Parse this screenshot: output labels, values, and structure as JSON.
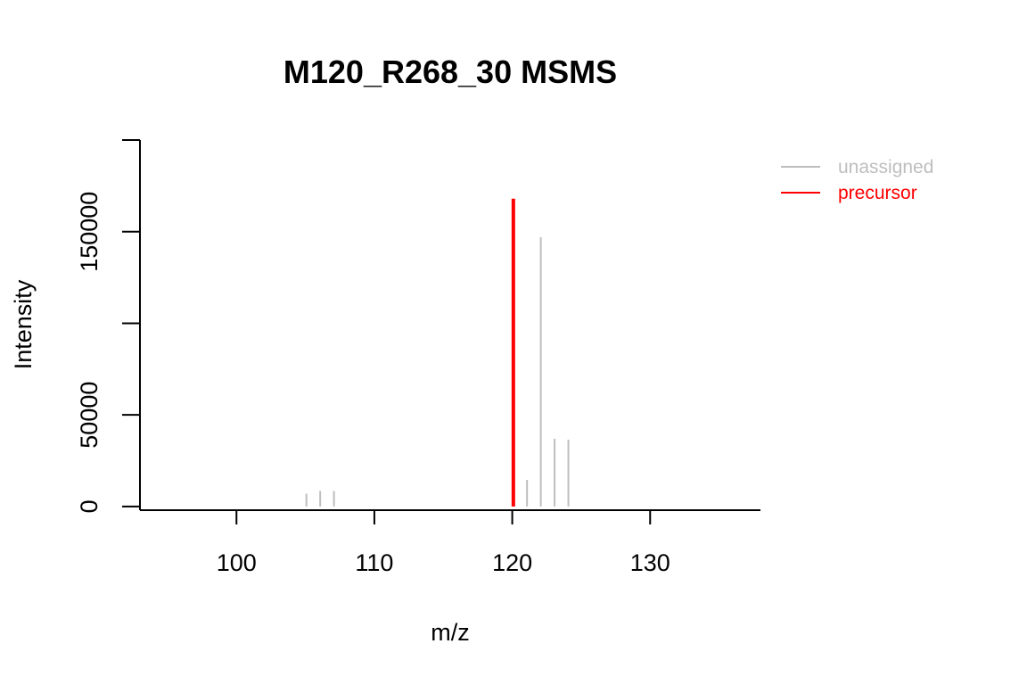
{
  "chart_data": {
    "type": "stick",
    "title": "M120_R268_30 MSMS",
    "xlabel": "m/z",
    "ylabel": "Intensity",
    "xlim": [
      93,
      138
    ],
    "ylim": [
      -2000,
      200000
    ],
    "xticks": [
      100,
      110,
      120,
      130
    ],
    "yticks": [
      0,
      50000,
      100000,
      150000,
      200000
    ],
    "ytick_labels": [
      "0",
      "50000",
      "",
      "150000",
      ""
    ],
    "legend": {
      "position": "top-right-outside"
    },
    "series": [
      {
        "name": "unassigned",
        "color": "#bebebe",
        "x": [
          105.07,
          106.07,
          107.07,
          121.07,
          122.07,
          123.07,
          124.07
        ],
        "y": [
          7000,
          8500,
          8500,
          14500,
          147000,
          37000,
          36500
        ]
      },
      {
        "name": "precursor",
        "color": "#ff0000",
        "x": [
          120.08
        ],
        "y": [
          168000
        ]
      }
    ]
  }
}
